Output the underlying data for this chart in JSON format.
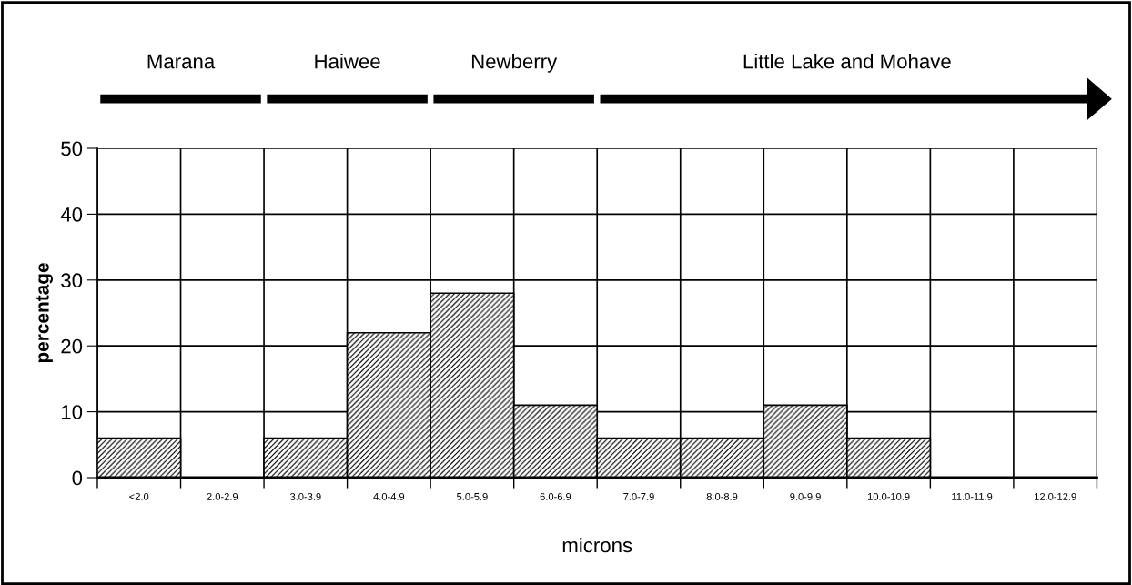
{
  "chart_data": {
    "type": "bar",
    "xlabel": "microns",
    "ylabel": "percentage",
    "categories": [
      "<2.0",
      "2.0-2.9",
      "3.0-3.9",
      "4.0-4.9",
      "5.0-5.9",
      "6.0-6.9",
      "7.0-7.9",
      "8.0-8.9",
      "9.0-9.9",
      "10.0-10.9",
      "11.0-11.9",
      "12.0-12.9"
    ],
    "values": [
      6,
      0,
      6,
      22,
      28,
      11,
      6,
      6,
      11,
      6,
      0,
      0
    ],
    "color": "#000000",
    "ylim": [
      0,
      50
    ],
    "yticks": [
      0,
      10,
      20,
      30,
      40,
      50
    ],
    "grid": true,
    "annotations": [
      "Marana",
      "Haiwee",
      "Newberry",
      "Little Lake and Mohave"
    ]
  }
}
